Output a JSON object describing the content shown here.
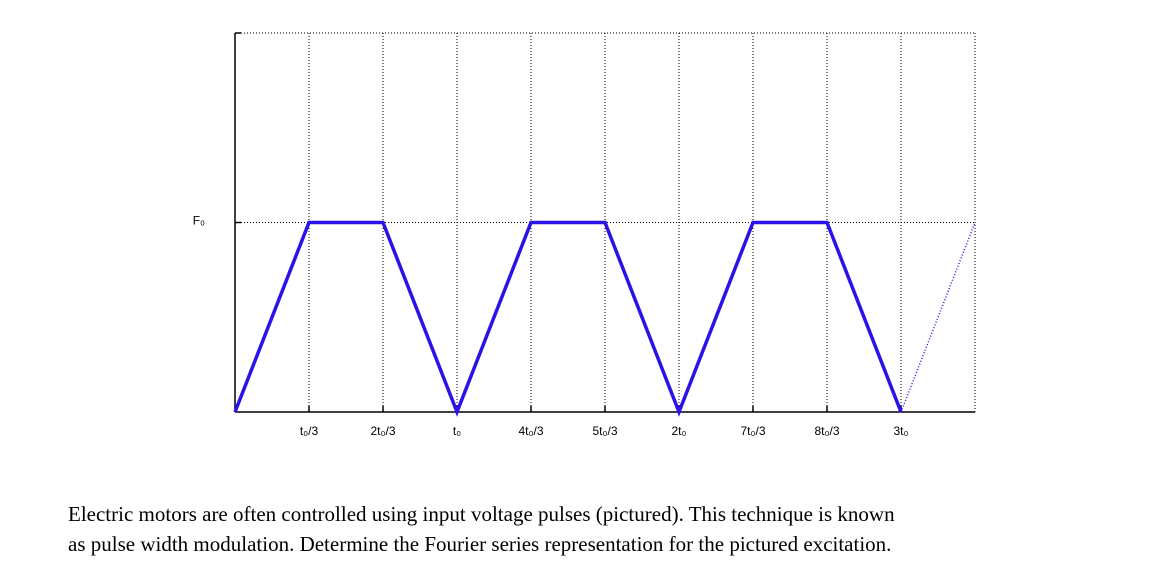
{
  "chart_data": {
    "type": "line",
    "x_series_note_free": null,
    "xlim": [
      0,
      10
    ],
    "ylim": [
      0,
      2
    ],
    "xticks": [
      {
        "value": 1,
        "label": "t₀/3"
      },
      {
        "value": 2,
        "label": "2t₀/3"
      },
      {
        "value": 3,
        "label": "t₀"
      },
      {
        "value": 4,
        "label": "4t₀/3"
      },
      {
        "value": 5,
        "label": "5t₀/3"
      },
      {
        "value": 6,
        "label": "2t₀"
      },
      {
        "value": 7,
        "label": "7t₀/3"
      },
      {
        "value": 8,
        "label": "8t₀/3"
      },
      {
        "value": 9,
        "label": "3t₀"
      }
    ],
    "yticks": [
      {
        "value": 1,
        "label": "F₀"
      }
    ],
    "grid": true,
    "series": [
      {
        "color": "#2b12e8",
        "style": "solid",
        "x": [
          0,
          1,
          2,
          3,
          4,
          5,
          6,
          7,
          8,
          9
        ],
        "values": [
          0,
          1,
          1,
          0,
          1,
          1,
          0,
          1,
          1,
          0
        ]
      },
      {
        "color": "#2b12e8",
        "style": "dotted",
        "x": [
          9,
          10
        ],
        "values": [
          0,
          1
        ]
      }
    ]
  },
  "caption_lines": [
    "Electric motors are often controlled using input voltage pulses (pictured). This technique is known",
    "as pulse width modulation. Determine the Fourier series representation for the pictured excitation."
  ]
}
